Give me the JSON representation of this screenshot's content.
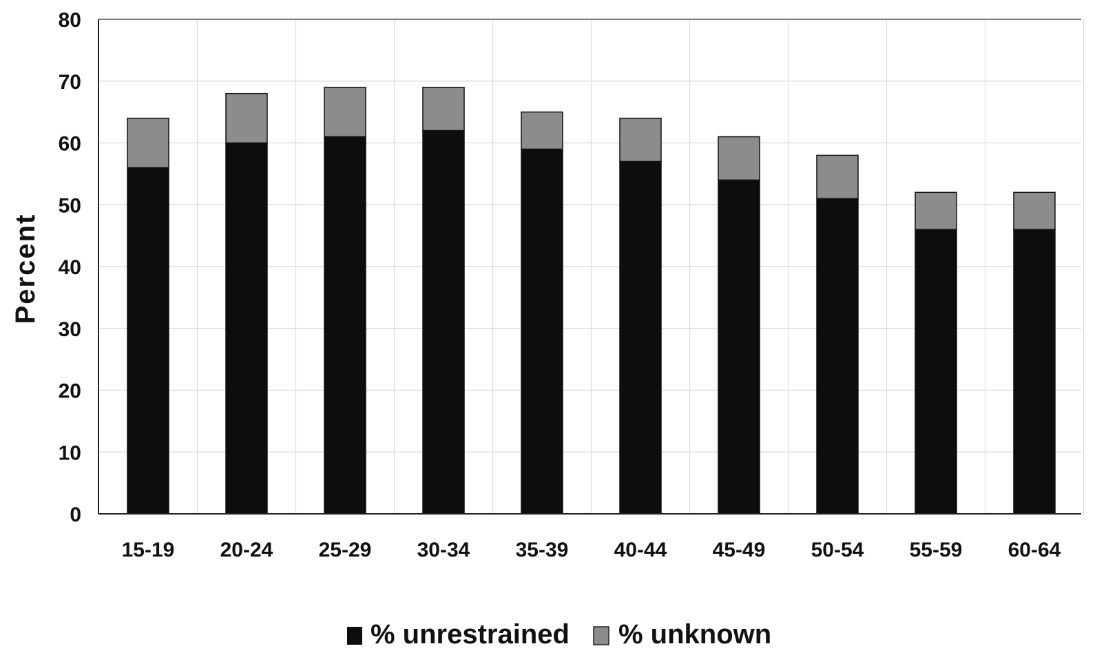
{
  "chart_data": {
    "type": "bar",
    "stacked": true,
    "title": "",
    "xlabel": "",
    "ylabel": "Percent",
    "ylim": [
      0,
      80
    ],
    "yticks": [
      0,
      10,
      20,
      30,
      40,
      50,
      60,
      70,
      80
    ],
    "grid": true,
    "legend_position": "bottom",
    "categories": [
      "15-19",
      "20-24",
      "25-29",
      "30-34",
      "35-39",
      "40-44",
      "45-49",
      "50-54",
      "55-59",
      "60-64"
    ],
    "series": [
      {
        "name": "% unrestrained",
        "color": "#0d0d0d",
        "values": [
          56,
          60,
          61,
          62,
          59,
          57,
          54,
          51,
          46,
          46
        ]
      },
      {
        "name": "% unknown",
        "color": "#8c8c8c",
        "values": [
          8,
          8,
          8,
          7,
          6,
          7,
          7,
          7,
          6,
          6
        ]
      }
    ]
  }
}
